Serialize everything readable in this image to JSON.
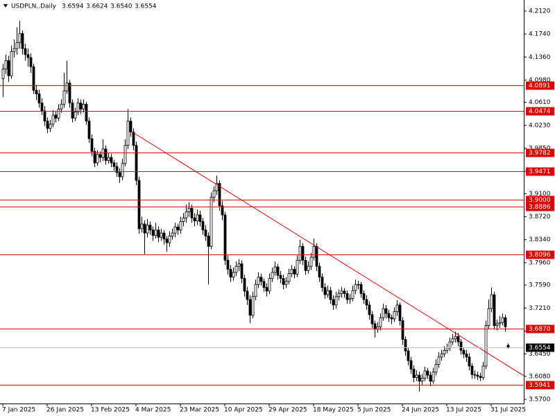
{
  "chart_data": {
    "type": "candlestick",
    "title": "USDPLN,.Daily",
    "title_values": [
      "3.6594",
      "3.6624",
      "3.6540",
      "3.6554"
    ],
    "up_color": "#ffffff",
    "down_color": "#000000",
    "level_color": "#e00000",
    "trendline_color": "#e00000",
    "ylim": [
      3.5631,
      4.2303
    ],
    "xlim": [
      -1,
      187.75
    ],
    "yticks": [
      {
        "value": 4.212,
        "label": "4.2120"
      },
      {
        "value": 4.174,
        "label": "4.1740"
      },
      {
        "value": 4.136,
        "label": "4.1360"
      },
      {
        "value": 4.098,
        "label": "4.0980"
      },
      {
        "value": 4.061,
        "label": "4.0610"
      },
      {
        "value": 4.023,
        "label": "4.0230"
      },
      {
        "value": 3.985,
        "label": "3.9850"
      },
      {
        "value": 3.947,
        "label": "3.9470"
      },
      {
        "value": 3.91,
        "label": "3.9100"
      },
      {
        "value": 3.872,
        "label": "3.8720"
      },
      {
        "value": 3.834,
        "label": "3.8340"
      },
      {
        "value": 3.796,
        "label": "3.7960"
      },
      {
        "value": 3.759,
        "label": "3.7590"
      },
      {
        "value": 3.721,
        "label": "3.7210"
      },
      {
        "value": 3.683,
        "label": "3.6830"
      },
      {
        "value": 3.645,
        "label": "3.6450"
      },
      {
        "value": 3.608,
        "label": "3.6080"
      },
      {
        "value": 3.57,
        "label": "3.5700"
      }
    ],
    "xticks": [
      {
        "value": 0,
        "label": "7 Jan 2025"
      },
      {
        "value": 16,
        "label": "26 Jan 2025"
      },
      {
        "value": 32,
        "label": "13 Feb 2025"
      },
      {
        "value": 48,
        "label": "4 Mar 2025"
      },
      {
        "value": 64,
        "label": "23 Mar 2025"
      },
      {
        "value": 80,
        "label": "10 Apr 2025"
      },
      {
        "value": 96,
        "label": "29 Apr 2025"
      },
      {
        "value": 112,
        "label": "18 May 2025"
      },
      {
        "value": 128,
        "label": "5 Jun 2025"
      },
      {
        "value": 144,
        "label": "24 Jun 2025"
      },
      {
        "value": 160,
        "label": "13 Jul 2025"
      },
      {
        "value": 176,
        "label": "31 Jul 2025"
      }
    ],
    "levels": [
      4.0891,
      4.0474,
      3.9782,
      3.9471,
      {
        "value": 3.9,
        "label": "3.9000"
      },
      3.8886,
      3.8096,
      {
        "value": 3.687,
        "label": "3.6870"
      },
      3.5941
    ],
    "trendline": {
      "x": [
        46.5,
        189
      ],
      "y": [
        4.0125,
        3.6055
      ]
    },
    "ohlc": [
      [
        4.1,
        4.125,
        4.07,
        4.116
      ],
      [
        4.116,
        4.14,
        4.108,
        4.13
      ],
      [
        4.13,
        4.138,
        4.095,
        4.105
      ],
      [
        4.105,
        4.155,
        4.1,
        4.145
      ],
      [
        4.145,
        4.165,
        4.135,
        4.15
      ],
      [
        4.15,
        4.185,
        4.14,
        4.16
      ],
      [
        4.16,
        4.196,
        4.15,
        4.175
      ],
      [
        4.175,
        4.18,
        4.14,
        4.15
      ],
      [
        4.15,
        4.158,
        4.13,
        4.14
      ],
      [
        4.14,
        4.15,
        4.12,
        4.135
      ],
      [
        4.135,
        4.142,
        4.11,
        4.12
      ],
      [
        4.12,
        4.125,
        4.075,
        4.081
      ],
      [
        4.081,
        4.09,
        4.065,
        4.075
      ],
      [
        4.075,
        4.082,
        4.052,
        4.06
      ],
      [
        4.06,
        4.068,
        4.04,
        4.047
      ],
      [
        4.047,
        4.055,
        4.022,
        4.03
      ],
      [
        4.03,
        4.036,
        4.01,
        4.018
      ],
      [
        4.018,
        4.032,
        4.012,
        4.025
      ],
      [
        4.025,
        4.048,
        4.02,
        4.04
      ],
      [
        4.04,
        4.046,
        4.028,
        4.035
      ],
      [
        4.035,
        4.058,
        4.03,
        4.05
      ],
      [
        4.05,
        4.066,
        4.044,
        4.058
      ],
      [
        4.058,
        4.11,
        4.052,
        4.08
      ],
      [
        4.08,
        4.13,
        4.075,
        4.093
      ],
      [
        4.093,
        4.098,
        4.052,
        4.06
      ],
      [
        4.06,
        4.066,
        4.028,
        4.035
      ],
      [
        4.035,
        4.052,
        4.03,
        4.045
      ],
      [
        4.045,
        4.068,
        4.04,
        4.06
      ],
      [
        4.06,
        4.066,
        4.042,
        4.05
      ],
      [
        4.05,
        4.066,
        4.044,
        4.058
      ],
      [
        4.058,
        4.062,
        4.024,
        4.03
      ],
      [
        4.03,
        4.036,
        3.994,
        4.001
      ],
      [
        4.001,
        4.008,
        3.972,
        3.98
      ],
      [
        3.98,
        3.986,
        3.954,
        3.961
      ],
      [
        3.961,
        3.982,
        3.956,
        3.975
      ],
      [
        3.975,
        3.98,
        3.962,
        3.97
      ],
      [
        3.97,
        4.0,
        3.964,
        3.984
      ],
      [
        3.984,
        3.99,
        3.958,
        3.965
      ],
      [
        3.965,
        3.978,
        3.96,
        3.97
      ],
      [
        3.97,
        3.976,
        3.954,
        3.961
      ],
      [
        3.961,
        3.966,
        3.948,
        3.955
      ],
      [
        3.955,
        3.962,
        3.938,
        3.945
      ],
      [
        3.945,
        3.952,
        3.928,
        3.938
      ],
      [
        3.938,
        3.968,
        3.932,
        3.96
      ],
      [
        3.96,
        4.0,
        3.955,
        3.99
      ],
      [
        3.99,
        4.05,
        3.984,
        4.03
      ],
      [
        4.03,
        4.036,
        4.004,
        4.012
      ],
      [
        4.012,
        4.018,
        3.982,
        3.99
      ],
      [
        3.99,
        3.996,
        3.924,
        3.932
      ],
      [
        3.932,
        3.938,
        3.844,
        3.852
      ],
      [
        3.852,
        3.872,
        3.846,
        3.86
      ],
      [
        3.86,
        3.866,
        3.81,
        3.845
      ],
      [
        3.845,
        3.868,
        3.838,
        3.858
      ],
      [
        3.858,
        3.864,
        3.842,
        3.85
      ],
      [
        3.85,
        3.856,
        3.832,
        3.841
      ],
      [
        3.841,
        3.862,
        3.836,
        3.85
      ],
      [
        3.85,
        3.856,
        3.83,
        3.838
      ],
      [
        3.838,
        3.852,
        3.832,
        3.845
      ],
      [
        3.845,
        3.85,
        3.826,
        3.835
      ],
      [
        3.835,
        3.84,
        3.814,
        3.829
      ],
      [
        3.829,
        3.848,
        3.822,
        3.84
      ],
      [
        3.84,
        3.852,
        3.834,
        3.845
      ],
      [
        3.845,
        3.862,
        3.838,
        3.855
      ],
      [
        3.855,
        3.86,
        3.842,
        3.85
      ],
      [
        3.85,
        3.872,
        3.844,
        3.864
      ],
      [
        3.864,
        3.878,
        3.856,
        3.87
      ],
      [
        3.87,
        3.892,
        3.862,
        3.88
      ],
      [
        3.88,
        3.896,
        3.872,
        3.886
      ],
      [
        3.886,
        3.892,
        3.862,
        3.87
      ],
      [
        3.87,
        3.878,
        3.856,
        3.865
      ],
      [
        3.865,
        3.884,
        3.858,
        3.875
      ],
      [
        3.875,
        3.882,
        3.856,
        3.864
      ],
      [
        3.864,
        3.87,
        3.842,
        3.85
      ],
      [
        3.85,
        3.858,
        3.832,
        3.84
      ],
      [
        3.84,
        3.846,
        3.76,
        3.823
      ],
      [
        3.823,
        3.912,
        3.818,
        3.904
      ],
      [
        3.904,
        3.922,
        3.896,
        3.915
      ],
      [
        3.915,
        3.94,
        3.908,
        3.927
      ],
      [
        3.927,
        3.932,
        3.882,
        3.89
      ],
      [
        3.89,
        3.898,
        3.866,
        3.875
      ],
      [
        3.875,
        3.88,
        3.792,
        3.8
      ],
      [
        3.8,
        3.808,
        3.776,
        3.785
      ],
      [
        3.785,
        3.792,
        3.764,
        3.772
      ],
      [
        3.772,
        3.788,
        3.766,
        3.78
      ],
      [
        3.78,
        3.798,
        3.774,
        3.79
      ],
      [
        3.79,
        3.802,
        3.782,
        3.794
      ],
      [
        3.794,
        3.8,
        3.762,
        3.77
      ],
      [
        3.77,
        3.776,
        3.74,
        3.749
      ],
      [
        3.749,
        3.756,
        3.726,
        3.735
      ],
      [
        3.735,
        3.742,
        3.696,
        3.709
      ],
      [
        3.709,
        3.748,
        3.704,
        3.74
      ],
      [
        3.74,
        3.768,
        3.734,
        3.76
      ],
      [
        3.76,
        3.78,
        3.754,
        3.772
      ],
      [
        3.772,
        3.778,
        3.758,
        3.765
      ],
      [
        3.765,
        3.77,
        3.748,
        3.755
      ],
      [
        3.755,
        3.762,
        3.74,
        3.749
      ],
      [
        3.749,
        3.778,
        3.744,
        3.77
      ],
      [
        3.77,
        3.788,
        3.764,
        3.78
      ],
      [
        3.78,
        3.798,
        3.774,
        3.789
      ],
      [
        3.789,
        3.794,
        3.768,
        3.775
      ],
      [
        3.775,
        3.782,
        3.762,
        3.77
      ],
      [
        3.77,
        3.776,
        3.752,
        3.76
      ],
      [
        3.76,
        3.772,
        3.754,
        3.765
      ],
      [
        3.765,
        3.786,
        3.76,
        3.778
      ],
      [
        3.778,
        3.792,
        3.772,
        3.785
      ],
      [
        3.785,
        3.79,
        3.77,
        3.777
      ],
      [
        3.777,
        3.808,
        3.772,
        3.8
      ],
      [
        3.8,
        3.834,
        3.794,
        3.823
      ],
      [
        3.823,
        3.828,
        3.792,
        3.8
      ],
      [
        3.8,
        3.806,
        3.776,
        3.783
      ],
      [
        3.783,
        3.798,
        3.778,
        3.79
      ],
      [
        3.79,
        3.812,
        3.784,
        3.805
      ],
      [
        3.805,
        3.836,
        3.8,
        3.823
      ],
      [
        3.823,
        3.828,
        3.782,
        3.79
      ],
      [
        3.79,
        3.796,
        3.764,
        3.772
      ],
      [
        3.772,
        3.778,
        3.748,
        3.755
      ],
      [
        3.755,
        3.762,
        3.736,
        3.743
      ],
      [
        3.743,
        3.758,
        3.738,
        3.75
      ],
      [
        3.75,
        3.756,
        3.728,
        3.735
      ],
      [
        3.735,
        3.742,
        3.718,
        3.726
      ],
      [
        3.726,
        3.748,
        3.72,
        3.74
      ],
      [
        3.74,
        3.752,
        3.734,
        3.745
      ],
      [
        3.745,
        3.756,
        3.738,
        3.749
      ],
      [
        3.749,
        3.754,
        3.738,
        3.745
      ],
      [
        3.745,
        3.75,
        3.728,
        3.735
      ],
      [
        3.735,
        3.744,
        3.728,
        3.737
      ],
      [
        3.737,
        3.758,
        3.732,
        3.75
      ],
      [
        3.75,
        3.768,
        3.744,
        3.76
      ],
      [
        3.76,
        3.766,
        3.752,
        3.76
      ],
      [
        3.76,
        3.764,
        3.738,
        3.745
      ],
      [
        3.745,
        3.75,
        3.728,
        3.735
      ],
      [
        3.735,
        3.742,
        3.718,
        3.726
      ],
      [
        3.726,
        3.732,
        3.702,
        3.71
      ],
      [
        3.71,
        3.716,
        3.688,
        3.695
      ],
      [
        3.695,
        3.7,
        3.672,
        3.686
      ],
      [
        3.686,
        3.698,
        3.68,
        3.69
      ],
      [
        3.69,
        3.712,
        3.684,
        3.705
      ],
      [
        3.705,
        3.728,
        3.7,
        3.72
      ],
      [
        3.72,
        3.726,
        3.704,
        3.712
      ],
      [
        3.712,
        3.718,
        3.698,
        3.705
      ],
      [
        3.705,
        3.71,
        3.694,
        3.703
      ],
      [
        3.703,
        3.722,
        3.698,
        3.715
      ],
      [
        3.715,
        3.734,
        3.708,
        3.726
      ],
      [
        3.726,
        3.73,
        3.692,
        3.7
      ],
      [
        3.7,
        3.706,
        3.66,
        3.669
      ],
      [
        3.669,
        3.674,
        3.642,
        3.65
      ],
      [
        3.65,
        3.656,
        3.626,
        3.634
      ],
      [
        3.634,
        3.64,
        3.612,
        3.62
      ],
      [
        3.62,
        3.626,
        3.598,
        3.606
      ],
      [
        3.606,
        3.618,
        3.6,
        3.61
      ],
      [
        3.61,
        3.616,
        3.583,
        3.6
      ],
      [
        3.6,
        3.612,
        3.594,
        3.605
      ],
      [
        3.605,
        3.624,
        3.6,
        3.617
      ],
      [
        3.617,
        3.622,
        3.604,
        3.61
      ],
      [
        3.61,
        3.616,
        3.592,
        3.6
      ],
      [
        3.6,
        3.622,
        3.596,
        3.615
      ],
      [
        3.615,
        3.636,
        3.61,
        3.628
      ],
      [
        3.628,
        3.648,
        3.622,
        3.64
      ],
      [
        3.64,
        3.652,
        3.634,
        3.645
      ],
      [
        3.645,
        3.658,
        3.64,
        3.651
      ],
      [
        3.651,
        3.662,
        3.646,
        3.655
      ],
      [
        3.655,
        3.672,
        3.65,
        3.665
      ],
      [
        3.665,
        3.678,
        3.66,
        3.67
      ],
      [
        3.67,
        3.682,
        3.664,
        3.674
      ],
      [
        3.674,
        3.68,
        3.658,
        3.665
      ],
      [
        3.665,
        3.67,
        3.644,
        3.651
      ],
      [
        3.651,
        3.656,
        3.638,
        3.645
      ],
      [
        3.645,
        3.652,
        3.632,
        3.64
      ],
      [
        3.64,
        3.646,
        3.618,
        3.625
      ],
      [
        3.625,
        3.63,
        3.604,
        3.611
      ],
      [
        3.611,
        3.618,
        3.604,
        3.61
      ],
      [
        3.61,
        3.616,
        3.602,
        3.608
      ],
      [
        3.608,
        3.614,
        3.6,
        3.606
      ],
      [
        3.606,
        3.632,
        3.602,
        3.625
      ],
      [
        3.625,
        3.7,
        3.62,
        3.692
      ],
      [
        3.692,
        3.735,
        3.686,
        3.72
      ],
      [
        3.72,
        3.755,
        3.714,
        3.743
      ],
      [
        3.743,
        3.748,
        3.686,
        3.692
      ],
      [
        3.692,
        3.702,
        3.684,
        3.695
      ],
      [
        3.695,
        3.708,
        3.688,
        3.697
      ],
      [
        3.697,
        3.712,
        3.692,
        3.705
      ],
      [
        3.705,
        3.71,
        3.682,
        3.69
      ],
      [
        3.6594,
        3.6624,
        3.654,
        3.6554
      ]
    ]
  }
}
